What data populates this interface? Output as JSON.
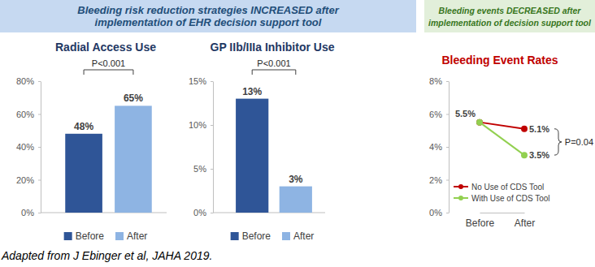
{
  "banners": [
    {
      "lines": [
        "Bleeding risk reduction strategies INCREASED after",
        "implementation of EHR decision support tool"
      ]
    },
    {
      "lines": [
        "Bleeding events DECREASED after",
        "implementation of decision support tool"
      ]
    }
  ],
  "caption": "Adapted from J Ebinger et al, JAHA 2019.",
  "chart_data": [
    {
      "type": "bar",
      "title": "Radial Access Use",
      "categories": [
        "Before",
        "After"
      ],
      "values": [
        48,
        65
      ],
      "value_labels": [
        "48%",
        "65%"
      ],
      "colors": [
        "#2f5597",
        "#8eb4e3"
      ],
      "ylim": [
        0,
        80
      ],
      "yticks": [
        {
          "value": 0,
          "label": "0%"
        },
        {
          "value": 20,
          "label": "20%"
        },
        {
          "value": 40,
          "label": "40%"
        },
        {
          "value": 60,
          "label": "60%"
        },
        {
          "value": 80,
          "label": "80%"
        }
      ],
      "data_labels": true,
      "tick_labels": "y",
      "legend": "bottom",
      "annotations": [
        "P<0.001"
      ]
    },
    {
      "type": "bar",
      "title": "GP IIb/IIIa Inhibitor Use",
      "categories": [
        "Before",
        "After"
      ],
      "values": [
        13,
        3
      ],
      "value_labels": [
        "13%",
        "3%"
      ],
      "colors": [
        "#2f5597",
        "#8eb4e3"
      ],
      "ylim": [
        0,
        15
      ],
      "yticks": [
        {
          "value": 0,
          "label": "0%"
        },
        {
          "value": 5,
          "label": "5%"
        },
        {
          "value": 10,
          "label": "10%"
        },
        {
          "value": 15,
          "label": "15%"
        }
      ],
      "data_labels": true,
      "tick_labels": "y",
      "legend": "bottom",
      "annotations": [
        "P<0.001"
      ]
    },
    {
      "type": "line",
      "title": "Bleeding Event Rates",
      "categories": [
        "Before",
        "After"
      ],
      "series": [
        {
          "name": "No Use of CDS Tool",
          "color": "#c00000",
          "values": [
            5.5,
            5.1
          ],
          "value_labels": [
            "5.5%",
            "5.1%"
          ]
        },
        {
          "name": "With Use of CDS Tool",
          "color": "#92d050",
          "values": [
            5.5,
            3.5
          ],
          "value_labels": [
            null,
            "3.5%"
          ]
        }
      ],
      "ylim": [
        0,
        8
      ],
      "yticks": [
        {
          "value": 0,
          "label": "0%"
        },
        {
          "value": 2,
          "label": "2%"
        },
        {
          "value": 4,
          "label": "4%"
        },
        {
          "value": 6,
          "label": "6%"
        },
        {
          "value": 8,
          "label": "8%"
        }
      ],
      "data_labels": true,
      "marker": "circle",
      "line_style": "solid",
      "legend": "lower left",
      "annotations": [
        "P=0.04"
      ]
    }
  ]
}
